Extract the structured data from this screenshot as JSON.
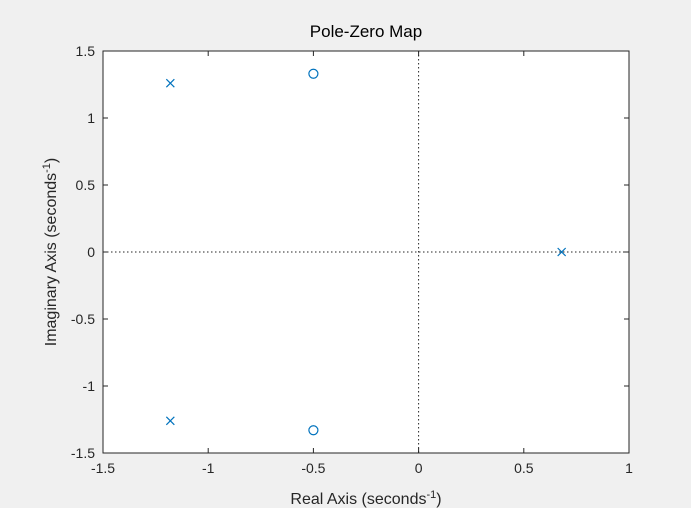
{
  "chart_data": {
    "type": "scatter",
    "title": "Pole-Zero Map",
    "xlabel": {
      "prefix": "Real Axis (seconds",
      "sup": "-1",
      "suffix": ")"
    },
    "ylabel": {
      "prefix": "Imaginary Axis (seconds",
      "sup": "-1",
      "suffix": ")"
    },
    "xlim": [
      -1.5,
      1
    ],
    "ylim": [
      -1.5,
      1.5
    ],
    "xticks": [
      -1.5,
      -1,
      -0.5,
      0,
      0.5,
      1
    ],
    "xtick_labels": [
      "-1.5",
      "-1",
      "-0.5",
      "0",
      "0.5",
      "1"
    ],
    "yticks": [
      -1.5,
      -1,
      -0.5,
      0,
      0.5,
      1,
      1.5
    ],
    "ytick_labels": [
      "-1.5",
      "-1",
      "-0.5",
      "0",
      "0.5",
      "1",
      "1.5"
    ],
    "grid": false,
    "zero_lines": true,
    "series": [
      {
        "marker": "x",
        "color": "#0072bd",
        "points": [
          {
            "x": -1.18,
            "y": 1.26
          },
          {
            "x": -1.18,
            "y": -1.26
          },
          {
            "x": 0.68,
            "y": 0
          }
        ]
      },
      {
        "marker": "o",
        "color": "#0072bd",
        "points": [
          {
            "x": -0.5,
            "y": 1.33
          },
          {
            "x": -0.5,
            "y": -1.33
          }
        ]
      }
    ]
  }
}
